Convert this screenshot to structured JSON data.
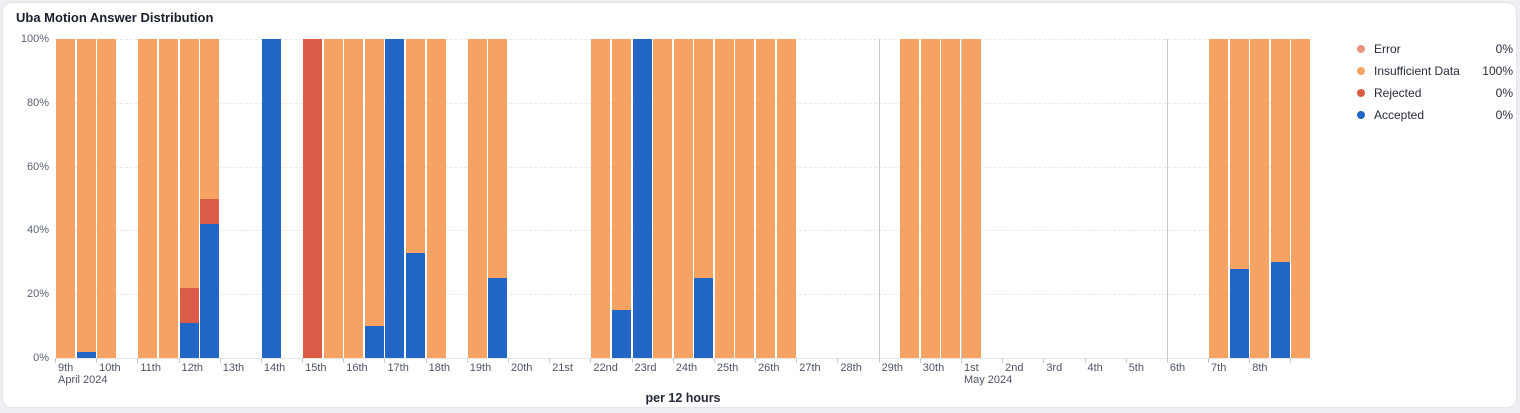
{
  "chart_data": {
    "type": "bar",
    "stacked": true,
    "units": "percent",
    "title": "Uba Motion Answer Distribution",
    "xlabel": "per 12 hours",
    "ylabel": "",
    "ylim": [
      0,
      100
    ],
    "grid": "horizontal-dashed",
    "legend_position": "right",
    "y_ticks": [
      "0%",
      "20%",
      "40%",
      "60%",
      "80%",
      "100%"
    ],
    "x_days": [
      {
        "label": "9th",
        "sublabel": "April 2024"
      },
      {
        "label": "10th"
      },
      {
        "label": "11th"
      },
      {
        "label": "12th"
      },
      {
        "label": "13th"
      },
      {
        "label": "14th"
      },
      {
        "label": "15th"
      },
      {
        "label": "16th"
      },
      {
        "label": "17th"
      },
      {
        "label": "18th"
      },
      {
        "label": "19th"
      },
      {
        "label": "20th"
      },
      {
        "label": "21st"
      },
      {
        "label": "22nd"
      },
      {
        "label": "23rd"
      },
      {
        "label": "24th"
      },
      {
        "label": "25th"
      },
      {
        "label": "26th"
      },
      {
        "label": "27th"
      },
      {
        "label": "28th"
      },
      {
        "label": "29th"
      },
      {
        "label": "30th"
      },
      {
        "label": "1st",
        "sublabel": "May 2024"
      },
      {
        "label": "2nd"
      },
      {
        "label": "3rd"
      },
      {
        "label": "4th"
      },
      {
        "label": "5th"
      },
      {
        "label": "6th"
      },
      {
        "label": "7th"
      },
      {
        "label": "8th"
      },
      {
        "label": ""
      }
    ],
    "slots_per_day": 2,
    "total_slots": 61,
    "ref_line_day_indices": [
      20,
      22,
      27
    ],
    "series": [
      {
        "key": "error",
        "label": "Error",
        "value": "0%",
        "color": "#EB937E"
      },
      {
        "key": "insufficient",
        "label": "Insufficient Data",
        "value": "100%",
        "color": "#F6A262"
      },
      {
        "key": "rejected",
        "label": "Rejected",
        "value": "0%",
        "color": "#DB5B46"
      },
      {
        "key": "accepted",
        "label": "Accepted",
        "value": "0%",
        "color": "#2166C5"
      }
    ],
    "bars": [
      {
        "slot": 0,
        "time": "Apr 9 AM",
        "segments": {
          "insufficient": 100
        }
      },
      {
        "slot": 1,
        "time": "Apr 9 PM",
        "segments": {
          "insufficient": 98,
          "accepted": 2
        }
      },
      {
        "slot": 2,
        "time": "Apr 10 AM",
        "segments": {
          "insufficient": 100
        }
      },
      {
        "slot": 4,
        "time": "Apr 11 AM",
        "segments": {
          "insufficient": 100
        }
      },
      {
        "slot": 5,
        "time": "Apr 11 PM",
        "segments": {
          "insufficient": 100
        }
      },
      {
        "slot": 6,
        "time": "Apr 12 AM",
        "segments": {
          "insufficient": 78,
          "rejected": 11,
          "accepted": 11
        }
      },
      {
        "slot": 7,
        "time": "Apr 12 PM",
        "segments": {
          "insufficient": 50,
          "rejected": 8,
          "accepted": 42
        }
      },
      {
        "slot": 10,
        "time": "Apr 14 AM",
        "segments": {
          "accepted": 100
        }
      },
      {
        "slot": 12,
        "time": "Apr 15 AM",
        "segments": {
          "rejected": 100
        }
      },
      {
        "slot": 13,
        "time": "Apr 15 PM",
        "segments": {
          "insufficient": 100
        }
      },
      {
        "slot": 14,
        "time": "Apr 16 AM",
        "segments": {
          "insufficient": 100
        }
      },
      {
        "slot": 15,
        "time": "Apr 16 PM",
        "segments": {
          "insufficient": 90,
          "accepted": 10
        }
      },
      {
        "slot": 16,
        "time": "Apr 17 AM",
        "segments": {
          "accepted": 100
        }
      },
      {
        "slot": 17,
        "time": "Apr 17 PM",
        "segments": {
          "insufficient": 67,
          "accepted": 33
        }
      },
      {
        "slot": 18,
        "time": "Apr 18 AM",
        "segments": {
          "insufficient": 100
        }
      },
      {
        "slot": 20,
        "time": "Apr 19 AM",
        "segments": {
          "insufficient": 100
        }
      },
      {
        "slot": 21,
        "time": "Apr 19 PM",
        "segments": {
          "insufficient": 75,
          "accepted": 25
        }
      },
      {
        "slot": 26,
        "time": "Apr 22 AM",
        "segments": {
          "insufficient": 100
        }
      },
      {
        "slot": 27,
        "time": "Apr 22 PM",
        "segments": {
          "insufficient": 85,
          "accepted": 15
        }
      },
      {
        "slot": 28,
        "time": "Apr 23 AM",
        "segments": {
          "accepted": 100
        }
      },
      {
        "slot": 29,
        "time": "Apr 23 PM",
        "segments": {
          "insufficient": 100
        }
      },
      {
        "slot": 30,
        "time": "Apr 24 AM",
        "segments": {
          "insufficient": 100
        }
      },
      {
        "slot": 31,
        "time": "Apr 24 PM",
        "segments": {
          "insufficient": 75,
          "accepted": 25
        }
      },
      {
        "slot": 32,
        "time": "Apr 25 AM",
        "segments": {
          "insufficient": 100
        }
      },
      {
        "slot": 33,
        "time": "Apr 25 PM",
        "segments": {
          "insufficient": 100
        }
      },
      {
        "slot": 34,
        "time": "Apr 26 AM",
        "segments": {
          "insufficient": 100
        }
      },
      {
        "slot": 35,
        "time": "Apr 26 PM",
        "segments": {
          "insufficient": 100
        }
      },
      {
        "slot": 41,
        "time": "Apr 29 PM",
        "segments": {
          "insufficient": 100
        }
      },
      {
        "slot": 42,
        "time": "Apr 30 AM",
        "segments": {
          "insufficient": 100
        }
      },
      {
        "slot": 43,
        "time": "Apr 30 PM",
        "segments": {
          "insufficient": 100
        }
      },
      {
        "slot": 44,
        "time": "May 1 AM",
        "segments": {
          "insufficient": 100
        }
      },
      {
        "slot": 56,
        "time": "May 7 AM",
        "segments": {
          "insufficient": 100
        }
      },
      {
        "slot": 57,
        "time": "May 7 PM",
        "segments": {
          "insufficient": 72,
          "accepted": 28
        }
      },
      {
        "slot": 58,
        "time": "May 8 AM",
        "segments": {
          "insufficient": 100
        }
      },
      {
        "slot": 59,
        "time": "May 8 PM",
        "segments": {
          "insufficient": 70,
          "accepted": 30
        }
      },
      {
        "slot": 60,
        "time": "May 9 AM",
        "segments": {
          "insufficient": 100
        }
      }
    ]
  }
}
